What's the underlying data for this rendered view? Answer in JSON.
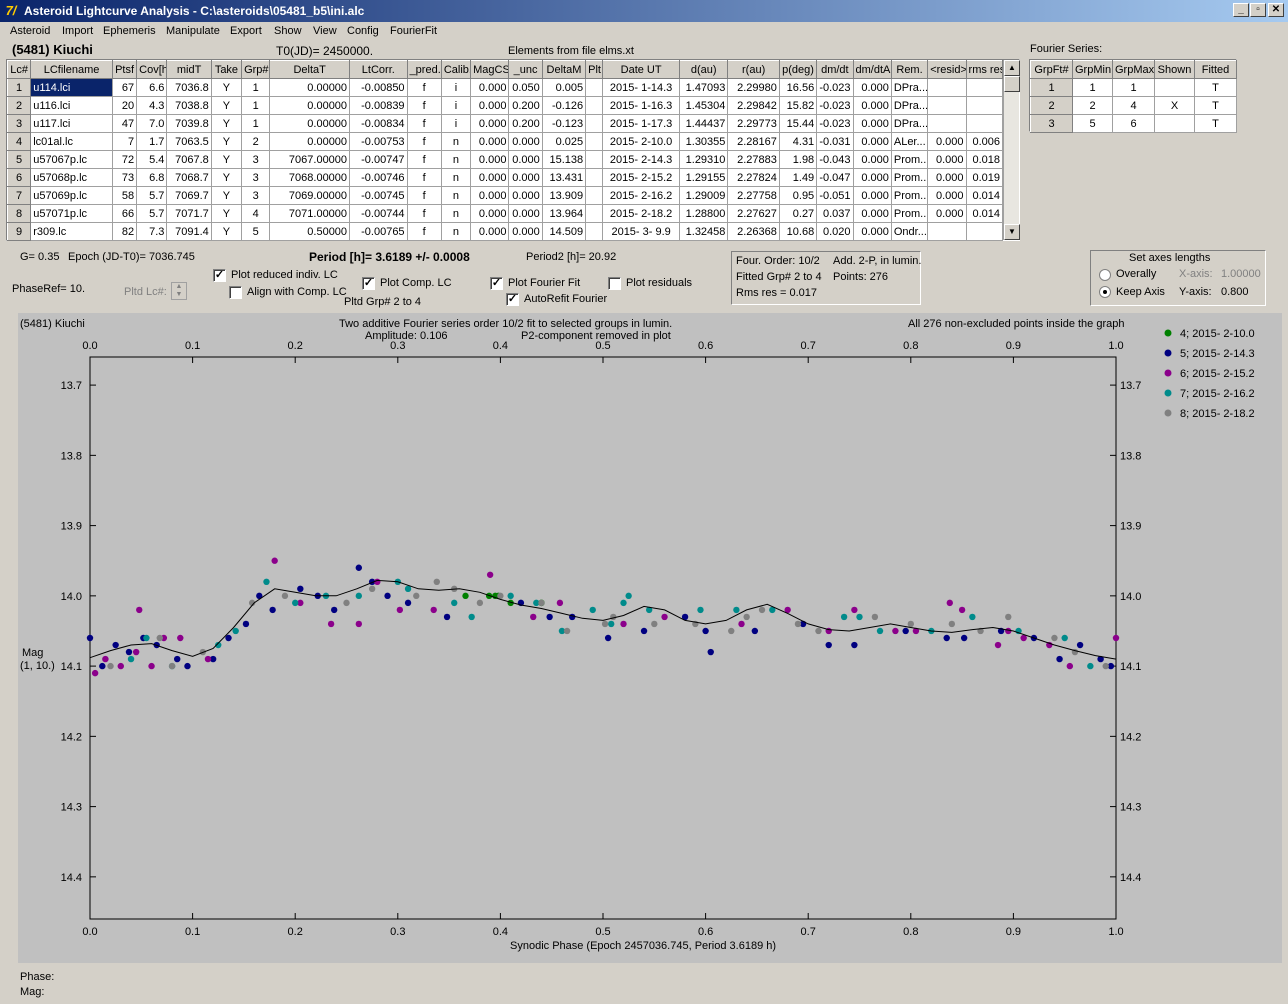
{
  "window": {
    "title": "Asteroid Lightcurve Analysis - C:\\asteroids\\05481_b5\\ini.alc",
    "icon_glyph": "7/"
  },
  "menu": [
    "Asteroid",
    "Import",
    "Ephemeris",
    "Manipulate",
    "Export",
    "Show",
    "View",
    "Config",
    "FourierFit"
  ],
  "header": {
    "object": "(5481) Kiuchi",
    "t0": "T0(JD)= 2450000.",
    "elements": "Elements from file elms.xt"
  },
  "lc_table": {
    "columns": [
      "Lc#",
      "LCfilename",
      "Ptsf",
      "Cov[h]",
      "midT",
      "Take",
      "Grp#",
      "DeltaT",
      "LtCorr.",
      "_pred.",
      "Calib.",
      "MagCS",
      "_unc",
      "DeltaM",
      "Plt",
      "Date UT",
      "d(au)",
      "r(au)",
      "p(deg)",
      "dm/dt",
      "dm/dtA",
      "Rem.",
      "<resid>",
      "rms res"
    ],
    "rows": [
      [
        "1",
        "u114.lci",
        "67",
        "6.6",
        "7036.8",
        "Y",
        "1",
        "0.00000",
        "-0.00850",
        "f",
        "i",
        "0.000",
        "0.050",
        "0.005",
        "",
        "2015- 1-14.3",
        "1.47093",
        "2.29980",
        "16.56",
        "-0.023",
        "0.000",
        "DPra...",
        "",
        ""
      ],
      [
        "2",
        "u116.lci",
        "20",
        "4.3",
        "7038.8",
        "Y",
        "1",
        "0.00000",
        "-0.00839",
        "f",
        "i",
        "0.000",
        "0.200",
        "-0.126",
        "",
        "2015- 1-16.3",
        "1.45304",
        "2.29842",
        "15.82",
        "-0.023",
        "0.000",
        "DPra...",
        "",
        ""
      ],
      [
        "3",
        "u117.lci",
        "47",
        "7.0",
        "7039.8",
        "Y",
        "1",
        "0.00000",
        "-0.00834",
        "f",
        "i",
        "0.000",
        "0.200",
        "-0.123",
        "",
        "2015- 1-17.3",
        "1.44437",
        "2.29773",
        "15.44",
        "-0.023",
        "0.000",
        "DPra...",
        "",
        ""
      ],
      [
        "4",
        "lc01al.lc",
        "7",
        "1.7",
        "7063.5",
        "Y",
        "2",
        "0.00000",
        "-0.00753",
        "f",
        "n",
        "0.000",
        "0.000",
        "0.025",
        "",
        "2015- 2-10.0",
        "1.30355",
        "2.28167",
        "4.31",
        "-0.031",
        "0.000",
        "ALer...",
        "0.000",
        "0.006"
      ],
      [
        "5",
        "u57067p.lc",
        "72",
        "5.4",
        "7067.8",
        "Y",
        "3",
        "7067.00000",
        "-0.00747",
        "f",
        "n",
        "0.000",
        "0.000",
        "15.138",
        "",
        "2015- 2-14.3",
        "1.29310",
        "2.27883",
        "1.98",
        "-0.043",
        "0.000",
        "Prom...",
        "0.000",
        "0.018"
      ],
      [
        "6",
        "u57068p.lc",
        "73",
        "6.8",
        "7068.7",
        "Y",
        "3",
        "7068.00000",
        "-0.00746",
        "f",
        "n",
        "0.000",
        "0.000",
        "13.431",
        "",
        "2015- 2-15.2",
        "1.29155",
        "2.27824",
        "1.49",
        "-0.047",
        "0.000",
        "Prom...",
        "0.000",
        "0.019"
      ],
      [
        "7",
        "u57069p.lc",
        "58",
        "5.7",
        "7069.7",
        "Y",
        "3",
        "7069.00000",
        "-0.00745",
        "f",
        "n",
        "0.000",
        "0.000",
        "13.909",
        "",
        "2015- 2-16.2",
        "1.29009",
        "2.27758",
        "0.95",
        "-0.051",
        "0.000",
        "Prom...",
        "0.000",
        "0.014"
      ],
      [
        "8",
        "u57071p.lc",
        "66",
        "5.7",
        "7071.7",
        "Y",
        "4",
        "7071.00000",
        "-0.00744",
        "f",
        "n",
        "0.000",
        "0.000",
        "13.964",
        "",
        "2015- 2-18.2",
        "1.28800",
        "2.27627",
        "0.27",
        "0.037",
        "0.000",
        "Prom...",
        "0.000",
        "0.014"
      ],
      [
        "9",
        "r309.lc",
        "82",
        "7.3",
        "7091.4",
        "Y",
        "5",
        "0.50000",
        "-0.00765",
        "f",
        "n",
        "0.000",
        "0.000",
        "14.509",
        "",
        "2015- 3- 9.9",
        "1.32458",
        "2.26368",
        "10.68",
        "0.020",
        "0.000",
        "Ondr...",
        "",
        ""
      ]
    ]
  },
  "fourier_table": {
    "label": "Fourier Series:",
    "columns": [
      "GrpFt#",
      "GrpMin",
      "GrpMax",
      "Shown",
      "Fitted"
    ],
    "rows": [
      [
        "1",
        "1",
        "1",
        "",
        "T"
      ],
      [
        "2",
        "2",
        "4",
        "X",
        "T"
      ],
      [
        "3",
        "5",
        "6",
        "",
        "T"
      ]
    ]
  },
  "controls": {
    "g": "G= 0.35",
    "epoch": "Epoch (JD-T0)= 7036.745",
    "period": "Period [h]= 3.6189 +/- 0.0008",
    "period2": "Period2 [h]= 20.92",
    "phaseref": "PhaseRef= 10.",
    "pltd_lc": "Pltd Lc#:",
    "plot_reduced": "Plot reduced indiv. LC",
    "align_comp": "Align with Comp. LC",
    "plot_comp": "Plot Comp. LC",
    "pltd_grp": "Pltd Grp#  2   to   4",
    "plot_fourier": "Plot Fourier Fit",
    "autorefit": "AutoRefit Fourier",
    "plot_residuals": "Plot residuals",
    "info_line1a": "Four. Order: 10/2",
    "info_line1b": "Add. 2-P, in lumin.",
    "info_line2a": "Fitted Grp# 2 to 4",
    "info_line2b": "Points: 276",
    "info_line3": "Rms res     = 0.017",
    "axes_title": "Set axes lengths",
    "overally": "Overally",
    "keep_axis": "Keep Axis",
    "xaxis_label": "X-axis:",
    "xaxis_value": "1.00000",
    "yaxis_label": "Y-axis:",
    "yaxis_value": "0.800"
  },
  "plot": {
    "object": "(5481) Kiuchi",
    "header1": "Two additive Fourier series order 10/2 fit to selected groups in lumin.",
    "header2a": "Amplitude: 0.106",
    "header2b": "P2-component removed in plot",
    "header_right": "All 276 non-excluded points inside the graph",
    "ylabel1": "Mag",
    "ylabel2": "(1, 10.)",
    "xlabel": "Synodic Phase (Epoch 2457036.745, Period 3.6189 h)"
  },
  "status": {
    "phase": "Phase:",
    "mag": "Mag:"
  },
  "chart_data": {
    "type": "scatter",
    "xlabel": "Synodic Phase (Epoch 2457036.745, Period 3.6189 h)",
    "ylabel": "Mag",
    "xlim": [
      0.0,
      1.0
    ],
    "ylim": [
      14.46,
      13.66
    ],
    "xticks": [
      "0.0",
      "0.1",
      "0.2",
      "0.3",
      "0.4",
      "0.5",
      "0.6",
      "0.7",
      "0.8",
      "0.9",
      "1.0"
    ],
    "yticks": [
      "13.7",
      "13.8",
      "13.9",
      "14.0",
      "14.1",
      "14.2",
      "14.3",
      "14.4"
    ],
    "legend_position": "right",
    "series": [
      {
        "name": "4; 2015- 2-10.0",
        "color": "#008000",
        "points": [
          [
            0.366,
            14.0
          ],
          [
            0.389,
            14.0
          ],
          [
            0.395,
            14.0
          ],
          [
            0.398,
            14.0
          ],
          [
            0.41,
            14.01
          ],
          [
            0.44,
            14.01
          ],
          [
            0.44,
            14.01
          ]
        ]
      },
      {
        "name": "5; 2015- 2-14.3",
        "color": "#000080",
        "points": [
          [
            0.0,
            14.06
          ],
          [
            0.012,
            14.1
          ],
          [
            0.025,
            14.07
          ],
          [
            0.038,
            14.08
          ],
          [
            0.052,
            14.06
          ],
          [
            0.065,
            14.07
          ],
          [
            0.085,
            14.09
          ],
          [
            0.095,
            14.1
          ],
          [
            0.12,
            14.09
          ],
          [
            0.135,
            14.06
          ],
          [
            0.152,
            14.04
          ],
          [
            0.165,
            14.0
          ],
          [
            0.178,
            14.02
          ],
          [
            0.205,
            13.99
          ],
          [
            0.222,
            14.0
          ],
          [
            0.238,
            14.02
          ],
          [
            0.262,
            13.96
          ],
          [
            0.275,
            13.98
          ],
          [
            0.29,
            14.0
          ],
          [
            0.31,
            14.01
          ],
          [
            0.348,
            14.03
          ],
          [
            0.42,
            14.01
          ],
          [
            0.448,
            14.03
          ],
          [
            0.47,
            14.03
          ],
          [
            0.505,
            14.06
          ],
          [
            0.54,
            14.05
          ],
          [
            0.58,
            14.03
          ],
          [
            0.6,
            14.05
          ],
          [
            0.605,
            14.08
          ],
          [
            0.648,
            14.05
          ],
          [
            0.695,
            14.04
          ],
          [
            0.72,
            14.07
          ],
          [
            0.745,
            14.07
          ],
          [
            0.795,
            14.05
          ],
          [
            0.835,
            14.06
          ],
          [
            0.852,
            14.06
          ],
          [
            0.888,
            14.05
          ],
          [
            0.92,
            14.06
          ],
          [
            0.945,
            14.09
          ],
          [
            0.965,
            14.07
          ],
          [
            0.985,
            14.09
          ],
          [
            0.995,
            14.1
          ]
        ]
      },
      {
        "name": "6; 2015- 2-15.2",
        "color": "#8b008b",
        "points": [
          [
            0.005,
            14.11
          ],
          [
            0.015,
            14.09
          ],
          [
            0.03,
            14.1
          ],
          [
            0.045,
            14.08
          ],
          [
            0.048,
            14.02
          ],
          [
            0.06,
            14.1
          ],
          [
            0.072,
            14.06
          ],
          [
            0.088,
            14.06
          ],
          [
            0.115,
            14.09
          ],
          [
            0.18,
            13.95
          ],
          [
            0.205,
            14.01
          ],
          [
            0.235,
            14.04
          ],
          [
            0.262,
            14.04
          ],
          [
            0.28,
            13.98
          ],
          [
            0.302,
            14.02
          ],
          [
            0.335,
            14.02
          ],
          [
            0.39,
            13.97
          ],
          [
            0.432,
            14.03
          ],
          [
            0.458,
            14.01
          ],
          [
            0.52,
            14.04
          ],
          [
            0.56,
            14.03
          ],
          [
            0.635,
            14.04
          ],
          [
            0.68,
            14.02
          ],
          [
            0.72,
            14.05
          ],
          [
            0.745,
            14.02
          ],
          [
            0.785,
            14.05
          ],
          [
            0.805,
            14.05
          ],
          [
            0.838,
            14.01
          ],
          [
            0.85,
            14.02
          ],
          [
            0.885,
            14.07
          ],
          [
            0.895,
            14.05
          ],
          [
            0.91,
            14.06
          ],
          [
            0.935,
            14.07
          ],
          [
            0.955,
            14.1
          ],
          [
            1.0,
            14.06
          ]
        ]
      },
      {
        "name": "7; 2015- 2-16.2",
        "color": "#008b8b",
        "points": [
          [
            0.04,
            14.09
          ],
          [
            0.055,
            14.06
          ],
          [
            0.08,
            14.1
          ],
          [
            0.125,
            14.07
          ],
          [
            0.142,
            14.05
          ],
          [
            0.172,
            13.98
          ],
          [
            0.2,
            14.01
          ],
          [
            0.23,
            14.0
          ],
          [
            0.262,
            14.0
          ],
          [
            0.3,
            13.98
          ],
          [
            0.31,
            13.99
          ],
          [
            0.355,
            14.01
          ],
          [
            0.372,
            14.03
          ],
          [
            0.41,
            14.0
          ],
          [
            0.435,
            14.01
          ],
          [
            0.46,
            14.05
          ],
          [
            0.49,
            14.02
          ],
          [
            0.508,
            14.04
          ],
          [
            0.52,
            14.01
          ],
          [
            0.525,
            14.0
          ],
          [
            0.545,
            14.02
          ],
          [
            0.595,
            14.02
          ],
          [
            0.63,
            14.02
          ],
          [
            0.665,
            14.02
          ],
          [
            0.735,
            14.03
          ],
          [
            0.75,
            14.03
          ],
          [
            0.77,
            14.05
          ],
          [
            0.82,
            14.05
          ],
          [
            0.86,
            14.03
          ],
          [
            0.905,
            14.05
          ],
          [
            0.95,
            14.06
          ],
          [
            0.975,
            14.1
          ]
        ]
      },
      {
        "name": "8; 2015- 2-18.2",
        "color": "#808080",
        "points": [
          [
            0.02,
            14.1
          ],
          [
            0.068,
            14.06
          ],
          [
            0.08,
            14.1
          ],
          [
            0.11,
            14.08
          ],
          [
            0.158,
            14.01
          ],
          [
            0.19,
            14.0
          ],
          [
            0.25,
            14.01
          ],
          [
            0.275,
            13.99
          ],
          [
            0.318,
            14.0
          ],
          [
            0.338,
            13.98
          ],
          [
            0.355,
            13.99
          ],
          [
            0.38,
            14.01
          ],
          [
            0.4,
            14.0
          ],
          [
            0.44,
            14.01
          ],
          [
            0.465,
            14.05
          ],
          [
            0.502,
            14.04
          ],
          [
            0.51,
            14.03
          ],
          [
            0.55,
            14.04
          ],
          [
            0.59,
            14.04
          ],
          [
            0.625,
            14.05
          ],
          [
            0.64,
            14.03
          ],
          [
            0.655,
            14.02
          ],
          [
            0.69,
            14.04
          ],
          [
            0.71,
            14.05
          ],
          [
            0.765,
            14.03
          ],
          [
            0.8,
            14.04
          ],
          [
            0.84,
            14.04
          ],
          [
            0.868,
            14.05
          ],
          [
            0.895,
            14.03
          ],
          [
            0.94,
            14.06
          ],
          [
            0.96,
            14.08
          ],
          [
            0.99,
            14.1
          ]
        ]
      }
    ],
    "fit_curve": [
      [
        0.0,
        14.088
      ],
      [
        0.02,
        14.078
      ],
      [
        0.04,
        14.07
      ],
      [
        0.06,
        14.068
      ],
      [
        0.08,
        14.078
      ],
      [
        0.1,
        14.086
      ],
      [
        0.12,
        14.075
      ],
      [
        0.14,
        14.045
      ],
      [
        0.16,
        14.01
      ],
      [
        0.18,
        13.99
      ],
      [
        0.2,
        13.995
      ],
      [
        0.22,
        14.0
      ],
      [
        0.24,
        14.0
      ],
      [
        0.26,
        13.99
      ],
      [
        0.28,
        13.978
      ],
      [
        0.3,
        13.98
      ],
      [
        0.32,
        13.99
      ],
      [
        0.34,
        13.992
      ],
      [
        0.36,
        13.99
      ],
      [
        0.38,
        13.995
      ],
      [
        0.4,
        14.005
      ],
      [
        0.42,
        14.013
      ],
      [
        0.44,
        14.018
      ],
      [
        0.46,
        14.025
      ],
      [
        0.48,
        14.032
      ],
      [
        0.5,
        14.035
      ],
      [
        0.52,
        14.028
      ],
      [
        0.54,
        14.015
      ],
      [
        0.56,
        14.02
      ],
      [
        0.58,
        14.035
      ],
      [
        0.6,
        14.04
      ],
      [
        0.62,
        14.035
      ],
      [
        0.64,
        14.02
      ],
      [
        0.66,
        14.012
      ],
      [
        0.68,
        14.025
      ],
      [
        0.7,
        14.04
      ],
      [
        0.72,
        14.048
      ],
      [
        0.74,
        14.05
      ],
      [
        0.76,
        14.045
      ],
      [
        0.78,
        14.04
      ],
      [
        0.8,
        14.045
      ],
      [
        0.82,
        14.05
      ],
      [
        0.84,
        14.052
      ],
      [
        0.86,
        14.048
      ],
      [
        0.88,
        14.045
      ],
      [
        0.9,
        14.05
      ],
      [
        0.92,
        14.06
      ],
      [
        0.94,
        14.07
      ],
      [
        0.96,
        14.078
      ],
      [
        0.98,
        14.085
      ],
      [
        1.0,
        14.09
      ]
    ]
  }
}
